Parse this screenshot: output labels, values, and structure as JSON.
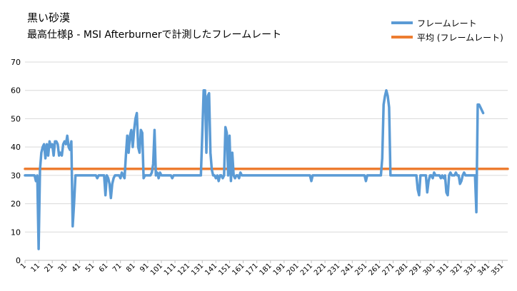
{
  "chart_data": {
    "type": "line",
    "title": "黒い砂漠",
    "subtitle": "最高仕様β - MSI Afterburnerで計測したフレームレート",
    "xlabel": "",
    "ylabel": "",
    "ylim": [
      0,
      70
    ],
    "yticks": [
      0,
      10,
      20,
      30,
      40,
      50,
      60,
      70
    ],
    "xlim": [
      1,
      355
    ],
    "xticks": [
      1,
      11,
      21,
      31,
      41,
      51,
      61,
      71,
      81,
      91,
      101,
      111,
      121,
      131,
      141,
      151,
      161,
      171,
      181,
      191,
      201,
      211,
      221,
      231,
      241,
      251,
      261,
      271,
      281,
      291,
      301,
      311,
      321,
      331,
      341,
      351
    ],
    "grid": "horizontal",
    "legend_position": "top-right",
    "series": [
      {
        "name": "フレームレート",
        "color": "#5b9bd5",
        "points": [
          [
            1,
            30
          ],
          [
            5,
            30
          ],
          [
            8,
            30
          ],
          [
            9,
            28
          ],
          [
            10,
            30
          ],
          [
            11,
            4
          ],
          [
            12,
            32
          ],
          [
            13,
            38
          ],
          [
            14,
            40
          ],
          [
            15,
            41
          ],
          [
            16,
            36
          ],
          [
            17,
            41
          ],
          [
            18,
            37
          ],
          [
            19,
            42
          ],
          [
            20,
            40
          ],
          [
            21,
            41
          ],
          [
            22,
            37
          ],
          [
            23,
            42
          ],
          [
            24,
            42
          ],
          [
            25,
            41
          ],
          [
            26,
            37
          ],
          [
            27,
            38
          ],
          [
            28,
            37
          ],
          [
            29,
            41
          ],
          [
            30,
            42
          ],
          [
            31,
            41
          ],
          [
            32,
            44
          ],
          [
            33,
            40
          ],
          [
            34,
            39
          ],
          [
            35,
            42
          ],
          [
            36,
            12
          ],
          [
            37,
            20
          ],
          [
            38,
            30
          ],
          [
            40,
            30
          ],
          [
            45,
            30
          ],
          [
            50,
            30
          ],
          [
            53,
            30
          ],
          [
            54,
            29
          ],
          [
            55,
            30
          ],
          [
            59,
            30
          ],
          [
            60,
            23
          ],
          [
            61,
            30
          ],
          [
            62,
            29
          ],
          [
            63,
            27
          ],
          [
            64,
            22
          ],
          [
            65,
            27
          ],
          [
            66,
            29
          ],
          [
            67,
            30
          ],
          [
            68,
            30
          ],
          [
            70,
            30
          ],
          [
            71,
            29
          ],
          [
            72,
            31
          ],
          [
            73,
            30
          ],
          [
            74,
            29
          ],
          [
            75,
            37
          ],
          [
            76,
            44
          ],
          [
            77,
            38
          ],
          [
            78,
            44
          ],
          [
            79,
            46
          ],
          [
            80,
            40
          ],
          [
            81,
            46
          ],
          [
            82,
            50
          ],
          [
            83,
            52
          ],
          [
            84,
            40
          ],
          [
            85,
            38
          ],
          [
            86,
            46
          ],
          [
            87,
            45
          ],
          [
            88,
            29
          ],
          [
            89,
            30
          ],
          [
            90,
            30
          ],
          [
            93,
            30
          ],
          [
            94,
            31
          ],
          [
            95,
            34
          ],
          [
            96,
            46
          ],
          [
            97,
            30
          ],
          [
            98,
            31
          ],
          [
            99,
            29
          ],
          [
            100,
            31
          ],
          [
            101,
            30
          ],
          [
            105,
            30
          ],
          [
            108,
            30
          ],
          [
            109,
            29
          ],
          [
            110,
            30
          ],
          [
            115,
            30
          ],
          [
            120,
            30
          ],
          [
            125,
            30
          ],
          [
            130,
            30
          ],
          [
            131,
            44
          ],
          [
            132,
            60
          ],
          [
            133,
            60
          ],
          [
            134,
            38
          ],
          [
            135,
            58
          ],
          [
            136,
            59
          ],
          [
            137,
            38
          ],
          [
            138,
            32
          ],
          [
            139,
            30
          ],
          [
            140,
            30
          ],
          [
            141,
            29
          ],
          [
            142,
            30
          ],
          [
            143,
            28
          ],
          [
            144,
            30
          ],
          [
            145,
            30
          ],
          [
            146,
            29
          ],
          [
            147,
            30
          ],
          [
            148,
            47
          ],
          [
            149,
            45
          ],
          [
            150,
            30
          ],
          [
            151,
            44
          ],
          [
            152,
            28
          ],
          [
            153,
            38
          ],
          [
            154,
            30
          ],
          [
            155,
            29
          ],
          [
            156,
            30
          ],
          [
            157,
            30
          ],
          [
            158,
            29
          ],
          [
            159,
            31
          ],
          [
            160,
            30
          ],
          [
            165,
            30
          ],
          [
            170,
            30
          ],
          [
            180,
            30
          ],
          [
            190,
            30
          ],
          [
            200,
            30
          ],
          [
            210,
            30
          ],
          [
            211,
            28
          ],
          [
            212,
            30
          ],
          [
            220,
            30
          ],
          [
            230,
            30
          ],
          [
            240,
            30
          ],
          [
            250,
            30
          ],
          [
            251,
            28
          ],
          [
            252,
            30
          ],
          [
            260,
            30
          ],
          [
            262,
            30
          ],
          [
            263,
            36
          ],
          [
            264,
            55
          ],
          [
            265,
            58
          ],
          [
            266,
            60
          ],
          [
            267,
            58
          ],
          [
            268,
            54
          ],
          [
            269,
            30
          ],
          [
            270,
            30
          ],
          [
            280,
            30
          ],
          [
            288,
            30
          ],
          [
            289,
            25
          ],
          [
            290,
            23
          ],
          [
            291,
            30
          ],
          [
            292,
            30
          ],
          [
            295,
            30
          ],
          [
            296,
            24
          ],
          [
            297,
            28
          ],
          [
            298,
            30
          ],
          [
            299,
            30
          ],
          [
            300,
            29
          ],
          [
            301,
            31
          ],
          [
            302,
            30
          ],
          [
            303,
            30
          ],
          [
            304,
            30
          ],
          [
            305,
            30
          ],
          [
            306,
            29
          ],
          [
            307,
            30
          ],
          [
            308,
            29
          ],
          [
            309,
            30
          ],
          [
            310,
            24
          ],
          [
            311,
            23
          ],
          [
            312,
            30
          ],
          [
            313,
            31
          ],
          [
            314,
            30
          ],
          [
            315,
            30
          ],
          [
            316,
            30
          ],
          [
            317,
            31
          ],
          [
            318,
            30
          ],
          [
            319,
            30
          ],
          [
            320,
            27
          ],
          [
            321,
            28
          ],
          [
            322,
            30
          ],
          [
            323,
            31
          ],
          [
            324,
            30
          ],
          [
            325,
            30
          ],
          [
            326,
            30
          ],
          [
            330,
            30
          ],
          [
            331,
            30
          ],
          [
            332,
            17
          ],
          [
            333,
            55
          ],
          [
            334,
            55
          ],
          [
            335,
            54
          ],
          [
            336,
            53
          ],
          [
            337,
            52
          ]
        ]
      },
      {
        "name": "平均 (フレームレート)",
        "color": "#ed7d31",
        "points": [
          [
            1,
            32.3
          ],
          [
            355,
            32.3
          ]
        ]
      }
    ]
  }
}
